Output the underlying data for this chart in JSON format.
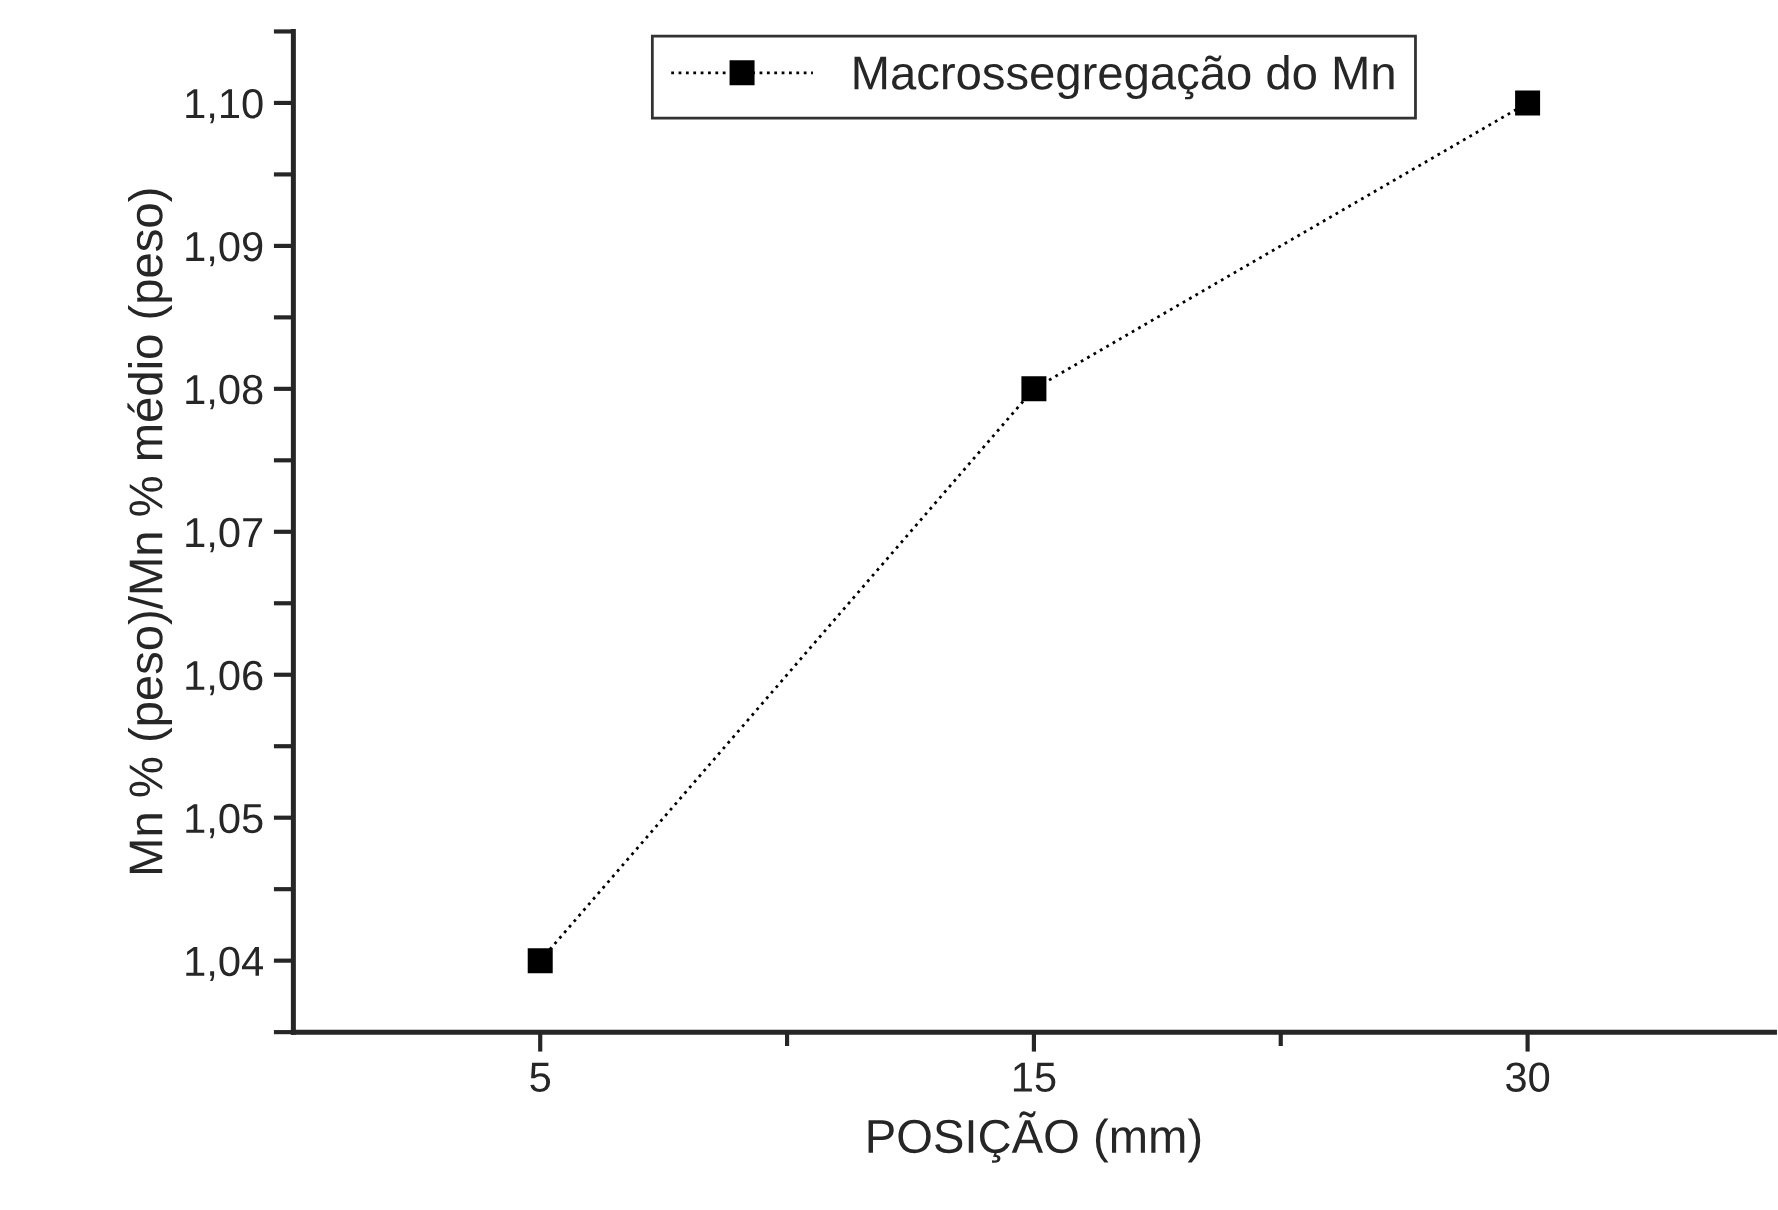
{
  "chart_data": {
    "type": "line",
    "xlabel": "POSIÇÃO (mm)",
    "ylabel": "Mn % (peso)/Mn % médio (peso)",
    "categories": [
      "5",
      "15",
      "30"
    ],
    "series": [
      {
        "name": "Macrossegregação do Mn",
        "color": "#000000",
        "values": [
          1.04,
          1.08,
          1.1
        ]
      }
    ],
    "ylim": [
      1.035,
      1.105
    ],
    "yticks": [
      {
        "value": 1.035,
        "label": null
      },
      {
        "value": 1.04,
        "label": "1,04"
      },
      {
        "value": 1.045,
        "label": null
      },
      {
        "value": 1.05,
        "label": "1,05"
      },
      {
        "value": 1.055,
        "label": null
      },
      {
        "value": 1.06,
        "label": "1,06"
      },
      {
        "value": 1.065,
        "label": null
      },
      {
        "value": 1.07,
        "label": "1,07"
      },
      {
        "value": 1.075,
        "label": null
      },
      {
        "value": 1.08,
        "label": "1,08"
      },
      {
        "value": 1.085,
        "label": null
      },
      {
        "value": 1.09,
        "label": "1,09"
      },
      {
        "value": 1.095,
        "label": null
      },
      {
        "value": 1.1,
        "label": "1,10"
      },
      {
        "value": 1.105,
        "label": null
      }
    ],
    "marker": "square",
    "line_style": "dotted",
    "legend": "top",
    "grid": false
  }
}
